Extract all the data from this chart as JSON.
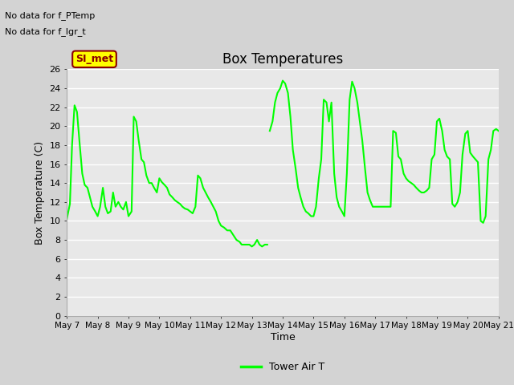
{
  "title": "Box Temperatures",
  "ylabel": "Box Temperature (C)",
  "xlabel": "Time",
  "xlim": [
    0,
    14
  ],
  "ylim": [
    0,
    26
  ],
  "yticks": [
    0,
    2,
    4,
    6,
    8,
    10,
    12,
    14,
    16,
    18,
    20,
    22,
    24,
    26
  ],
  "xtick_labels": [
    "May 7",
    "May 8",
    "May 9",
    "May 10",
    "May 11",
    "May 12",
    "May 13",
    "May 14",
    "May 15",
    "May 16",
    "May 17",
    "May 18",
    "May 19",
    "May 20",
    "May 21"
  ],
  "line_color": "#00ff00",
  "line_width": 1.5,
  "fig_bg_color": "#d3d3d3",
  "plot_bg_color": "#e8e8e8",
  "no_data_text1": "No data for f_PTemp",
  "no_data_text2": "No data for f_lgr_t",
  "legend_label": "Tower Air T",
  "SI_met_label": "SI_met",
  "segment1_x": [
    0,
    0.05,
    0.1,
    0.17,
    0.25,
    0.33,
    0.42,
    0.5,
    0.58,
    0.67,
    0.75,
    0.83,
    0.92,
    1.0,
    1.08,
    1.17,
    1.25,
    1.33,
    1.42,
    1.5,
    1.58,
    1.67,
    1.75,
    1.83,
    1.92,
    2.0,
    2.1,
    2.17,
    2.25,
    2.33,
    2.42,
    2.5,
    2.58,
    2.67,
    2.75,
    2.83,
    2.92,
    3.0,
    3.08,
    3.17,
    3.25,
    3.33,
    3.42,
    3.5,
    3.58,
    3.67,
    3.75,
    3.83,
    3.92,
    4.0,
    4.08,
    4.17,
    4.25,
    4.33,
    4.42,
    4.5,
    4.58,
    4.67,
    4.75,
    4.83,
    4.92,
    5.0,
    5.1,
    5.2,
    5.3,
    5.4,
    5.5,
    5.6,
    5.67,
    5.75,
    5.83,
    5.92,
    6.0,
    6.08,
    6.17,
    6.25,
    6.33,
    6.42,
    6.5
  ],
  "segment1_y": [
    10.2,
    11.0,
    11.8,
    18.0,
    22.2,
    21.5,
    18.0,
    15.0,
    13.8,
    13.5,
    12.5,
    11.5,
    11.0,
    10.5,
    11.5,
    13.5,
    11.5,
    10.8,
    11.0,
    13.0,
    11.5,
    12.0,
    11.5,
    11.2,
    12.0,
    10.5,
    11.0,
    21.0,
    20.5,
    18.5,
    16.5,
    16.2,
    14.8,
    14.0,
    14.0,
    13.5,
    13.0,
    14.5,
    14.1,
    13.8,
    13.5,
    12.8,
    12.5,
    12.2,
    12.0,
    11.8,
    11.5,
    11.3,
    11.2,
    11.0,
    10.8,
    11.5,
    14.8,
    14.5,
    13.5,
    13.0,
    12.5,
    12.0,
    11.5,
    11.0,
    10.0,
    9.5,
    9.3,
    9.0,
    9.0,
    8.5,
    8.0,
    7.8,
    7.5,
    7.5,
    7.5,
    7.5,
    7.3,
    7.5,
    8.0,
    7.5,
    7.3,
    7.5,
    7.5
  ],
  "segment2_x": [
    6.58,
    6.67,
    6.75,
    6.83,
    6.92,
    7.0,
    7.08,
    7.17,
    7.25,
    7.33,
    7.42,
    7.5,
    7.58,
    7.67,
    7.75,
    7.83,
    7.92,
    8.0,
    8.08,
    8.17,
    8.25,
    8.33,
    8.42,
    8.5,
    8.58,
    8.67,
    8.75,
    8.83,
    8.92,
    9.0,
    9.08,
    9.17,
    9.25,
    9.33,
    9.42,
    9.5,
    9.58,
    9.67,
    9.75,
    9.83,
    9.92,
    10.0,
    10.08,
    10.17,
    10.25,
    10.33,
    10.42,
    10.5,
    10.58,
    10.67,
    10.75,
    10.83,
    10.92,
    11.0,
    11.08,
    11.17,
    11.25,
    11.33,
    11.42,
    11.5,
    11.58,
    11.67,
    11.75,
    11.83,
    11.92,
    12.0,
    12.08,
    12.17,
    12.25,
    12.33,
    12.42,
    12.5,
    12.58,
    12.67,
    12.75,
    12.83,
    12.92,
    13.0,
    13.08,
    13.17,
    13.25,
    13.33,
    13.42,
    13.5,
    13.58,
    13.67,
    13.75,
    13.83,
    13.92,
    14.0
  ],
  "segment2_y": [
    19.5,
    20.5,
    22.5,
    23.5,
    24.0,
    24.8,
    24.5,
    23.5,
    21.0,
    17.5,
    15.5,
    13.5,
    12.5,
    11.5,
    11.0,
    10.8,
    10.5,
    10.5,
    11.5,
    14.5,
    16.5,
    22.8,
    22.5,
    20.5,
    22.5,
    15.0,
    12.5,
    11.5,
    11.0,
    10.5,
    15.0,
    22.8,
    24.7,
    24.0,
    22.5,
    20.5,
    18.5,
    15.5,
    13.0,
    12.2,
    11.5,
    11.5,
    11.5,
    11.5,
    11.5,
    11.5,
    11.5,
    11.5,
    19.5,
    19.3,
    16.8,
    16.5,
    15.0,
    14.5,
    14.2,
    14.0,
    13.8,
    13.5,
    13.2,
    13.0,
    13.0,
    13.2,
    13.5,
    16.5,
    17.0,
    20.5,
    20.8,
    19.5,
    17.5,
    16.8,
    16.5,
    11.8,
    11.5,
    12.0,
    13.0,
    17.0,
    19.2,
    19.5,
    17.2,
    16.8,
    16.5,
    16.2,
    10.0,
    9.8,
    10.5,
    16.5,
    17.5,
    19.5,
    19.7,
    19.5
  ]
}
